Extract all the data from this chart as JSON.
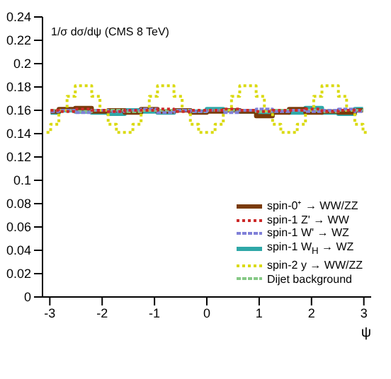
{
  "chart_data": {
    "type": "step",
    "ylabel": "1/σ dσ/dψ (CMS 8 TeV)",
    "xlabel": "ψ",
    "xlim": [
      -3.14,
      3.14
    ],
    "ylim": [
      0,
      0.24
    ],
    "xticks": [
      -3,
      -2,
      -1,
      0,
      1,
      2,
      3
    ],
    "yticks": [
      0,
      0.02,
      0.04,
      0.06,
      0.08,
      0.1,
      0.12,
      0.14,
      0.16,
      0.18,
      0.2,
      0.22,
      0.24
    ],
    "legend": "bottom right",
    "series": [
      {
        "name": "spin-0⁺ → WW/ZZ",
        "color": "#7a3b0a",
        "line_style": "solid",
        "x": [
          -2.985,
          -2.671,
          -2.357,
          -2.042,
          -1.728,
          -1.414,
          -1.1,
          -0.785,
          -0.471,
          -0.157,
          0.157,
          0.471,
          0.785,
          1.1,
          1.414,
          1.728,
          2.042,
          2.357,
          2.671,
          2.985
        ],
        "values": [
          0.159,
          0.161,
          0.162,
          0.159,
          0.16,
          0.158,
          0.161,
          0.159,
          0.16,
          0.158,
          0.159,
          0.16,
          0.159,
          0.155,
          0.158,
          0.161,
          0.158,
          0.159,
          0.158,
          0.16
        ]
      },
      {
        "name": "spin-1 Z' → WW",
        "color": "#cc2a2a",
        "line_style": "dotted",
        "x": [
          -2.985,
          -2.671,
          -2.357,
          -2.042,
          -1.728,
          -1.414,
          -1.1,
          -0.785,
          -0.471,
          -0.157,
          0.157,
          0.471,
          0.785,
          1.1,
          1.414,
          1.728,
          2.042,
          2.357,
          2.671,
          2.985
        ],
        "values": [
          0.16,
          0.159,
          0.161,
          0.16,
          0.159,
          0.16,
          0.16,
          0.161,
          0.159,
          0.16,
          0.16,
          0.161,
          0.16,
          0.159,
          0.16,
          0.16,
          0.161,
          0.159,
          0.16,
          0.16
        ]
      },
      {
        "name": "spin-1 W' → WZ",
        "color": "#8080d8",
        "line_style": "dashed",
        "x": [
          -2.985,
          -2.671,
          -2.357,
          -2.042,
          -1.728,
          -1.414,
          -1.1,
          -0.785,
          -0.471,
          -0.157,
          0.157,
          0.471,
          0.785,
          1.1,
          1.414,
          1.728,
          2.042,
          2.357,
          2.671,
          2.985
        ],
        "values": [
          0.159,
          0.16,
          0.158,
          0.16,
          0.159,
          0.16,
          0.161,
          0.158,
          0.16,
          0.159,
          0.16,
          0.158,
          0.16,
          0.161,
          0.159,
          0.16,
          0.159,
          0.16,
          0.161,
          0.159
        ]
      },
      {
        "name": "spin-1 W$_{H}$ → WZ",
        "color": "#2fa8a8",
        "line_style": "solid",
        "x": [
          -2.985,
          -2.671,
          -2.357,
          -2.042,
          -1.728,
          -1.414,
          -1.1,
          -0.785,
          -0.471,
          -0.157,
          0.157,
          0.471,
          0.785,
          1.1,
          1.414,
          1.728,
          2.042,
          2.357,
          2.671,
          2.985
        ],
        "values": [
          0.158,
          0.16,
          0.159,
          0.158,
          0.157,
          0.16,
          0.159,
          0.158,
          0.16,
          0.159,
          0.161,
          0.16,
          0.159,
          0.158,
          0.159,
          0.158,
          0.162,
          0.158,
          0.157,
          0.161
        ]
      },
      {
        "name": "spin-2 y → WW/ZZ",
        "color": "#dada10",
        "line_style": "dotted",
        "x": [
          -3.063,
          -2.906,
          -2.749,
          -2.592,
          -2.435,
          -2.278,
          -2.121,
          -1.964,
          -1.806,
          -1.649,
          -1.492,
          -1.335,
          -1.178,
          -1.021,
          -0.864,
          -0.707,
          -0.55,
          -0.393,
          -0.236,
          -0.079,
          0.079,
          0.236,
          0.393,
          0.55,
          0.707,
          0.864,
          1.021,
          1.178,
          1.335,
          1.492,
          1.649,
          1.806,
          1.964,
          2.121,
          2.278,
          2.435,
          2.592,
          2.749,
          2.906,
          3.063
        ],
        "values": [
          0.141,
          0.148,
          0.16,
          0.172,
          0.181,
          0.181,
          0.172,
          0.16,
          0.148,
          0.141,
          0.141,
          0.148,
          0.16,
          0.172,
          0.181,
          0.181,
          0.172,
          0.16,
          0.148,
          0.141,
          0.141,
          0.148,
          0.16,
          0.172,
          0.181,
          0.181,
          0.172,
          0.16,
          0.148,
          0.141,
          0.141,
          0.148,
          0.16,
          0.172,
          0.181,
          0.181,
          0.172,
          0.16,
          0.148,
          0.141
        ]
      },
      {
        "name": "Dijet background",
        "color": "#86c986",
        "line_style": "dashed",
        "x": [
          -2.985,
          -2.671,
          -2.357,
          -2.042,
          -1.728,
          -1.414,
          -1.1,
          -0.785,
          -0.471,
          -0.157,
          0.157,
          0.471,
          0.785,
          1.1,
          1.414,
          1.728,
          2.042,
          2.357,
          2.671,
          2.985
        ],
        "values": [
          0.16,
          0.16,
          0.159,
          0.16,
          0.16,
          0.159,
          0.16,
          0.16,
          0.16,
          0.159,
          0.16,
          0.16,
          0.16,
          0.159,
          0.16,
          0.16,
          0.16,
          0.159,
          0.16,
          0.16
        ]
      }
    ]
  }
}
